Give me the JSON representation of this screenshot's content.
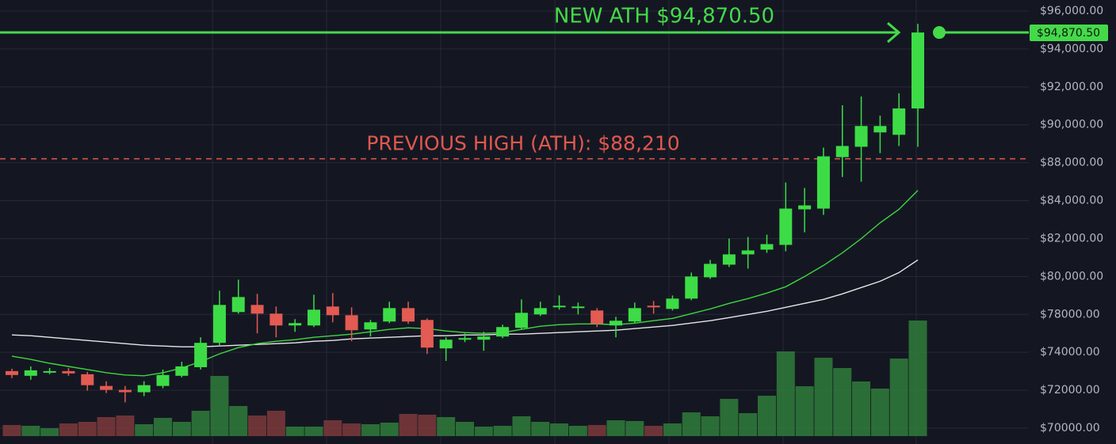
{
  "chart_data": {
    "type": "candlestick",
    "categories": [
      null,
      null,
      null,
      null,
      null,
      null,
      null,
      null,
      null,
      null,
      null,
      null,
      null,
      null,
      null,
      null,
      null,
      null,
      null,
      null,
      null,
      null,
      null,
      null,
      null,
      null,
      null,
      null,
      null,
      null,
      null,
      null,
      null,
      null,
      null,
      null,
      null,
      null,
      null,
      null,
      null,
      null,
      null,
      null,
      null,
      null,
      null,
      null,
      null
    ],
    "open": [
      73010,
      72763,
      72928,
      73010,
      72845,
      72227,
      72020,
      71897,
      72227,
      72763,
      73216,
      75000,
      78125,
      78500,
      78042,
      76834,
      76834,
      78417,
      77917,
      76417,
      77250,
      78333,
      77417,
      74418,
      75334,
      75334,
      75668,
      76584,
      78000,
      78375,
      78375,
      78208,
      76834,
      77250,
      78458,
      78292,
      78834,
      79958,
      80625,
      81167,
      81417,
      81667,
      83542,
      83583,
      88296,
      88843,
      89601,
      89475,
      90864
    ],
    "high": [
      73134,
      73258,
      73175,
      73175,
      72969,
      72474,
      72227,
      72474,
      73093,
      73505,
      75584,
      79250,
      79833,
      79083,
      78417,
      77500,
      79042,
      79125,
      78375,
      77417,
      78667,
      78667,
      77584,
      75584,
      76000,
      76167,
      76917,
      78792,
      78667,
      79000,
      78625,
      78333,
      77750,
      78625,
      78708,
      79000,
      80208,
      80875,
      82000,
      82083,
      82208,
      85917,
      85334,
      88801,
      91032,
      91495,
      90485,
      91664,
      95326
    ],
    "low": [
      72639,
      72557,
      72845,
      72763,
      71979,
      71855,
      71361,
      71691,
      72103,
      72680,
      73093,
      74667,
      78042,
      76000,
      75584,
      76167,
      76667,
      77167,
      75168,
      75668,
      77083,
      77000,
      73918,
      73546,
      75084,
      74167,
      75501,
      76417,
      77833,
      78250,
      78000,
      76667,
      75584,
      77083,
      78042,
      78208,
      78750,
      79875,
      80500,
      80417,
      81250,
      81333,
      82333,
      83250,
      86500,
      86000,
      88506,
      88885,
      88843
    ],
    "close": [
      72804,
      73051,
      73010,
      72887,
      72268,
      72020,
      71897,
      72268,
      72804,
      73258,
      75001,
      78500,
      78917,
      78042,
      76834,
      77083,
      78250,
      77917,
      76334,
      77167,
      78333,
      77250,
      74501,
      75334,
      75501,
      75668,
      76667,
      78083,
      78333,
      78458,
      78417,
      77000,
      77334,
      78333,
      78375,
      78834,
      80000,
      80667,
      81167,
      81375,
      81708,
      83583,
      83750,
      88338,
      88885,
      89938,
      89938,
      90864,
      94870.5
    ],
    "volume": [
      14,
      13,
      10,
      16,
      18,
      24,
      26,
      15,
      23,
      18,
      32,
      76,
      38,
      26,
      32,
      12,
      12,
      20,
      16,
      15,
      17,
      28,
      27,
      24,
      18,
      12,
      13,
      25,
      18,
      16,
      13,
      14,
      20,
      19,
      13,
      16,
      30,
      25,
      47,
      29,
      51,
      107,
      63,
      99,
      86,
      69,
      60,
      98,
      146
    ],
    "vlim": [
      0,
      160
    ],
    "up_color": "#3ddc46",
    "down_color": "#e35b52",
    "volume_up_color": "#2f7d3a",
    "volume_down_color": "#7c3a3c",
    "series": [
      {
        "color": "#e6e6e6",
        "values": [
          75834,
          75751,
          75584,
          75417,
          75251,
          75084,
          74918,
          74751,
          74668,
          74584,
          74584,
          74668,
          74751,
          74835,
          74918,
          75001,
          75168,
          75251,
          75417,
          75501,
          75584,
          75668,
          75751,
          75751,
          75834,
          75834,
          75918,
          75918,
          76001,
          76084,
          76167,
          76251,
          76334,
          76501,
          76667,
          76834,
          77084,
          77334,
          77667,
          78000,
          78167,
          78375,
          78583,
          78792,
          79083,
          79417,
          79750,
          80208,
          80875
        ]
      },
      {
        "color": "#3fd63f",
        "values": [
          73794,
          73629,
          73423,
          73258,
          73093,
          72928,
          72804,
          72763,
          72928,
          73175,
          73505,
          73918,
          74501,
          74918,
          75168,
          75334,
          75584,
          75751,
          75918,
          76167,
          76417,
          76584,
          76501,
          76251,
          76084,
          76000,
          76084,
          76417,
          76751,
          76917,
          77000,
          77000,
          76917,
          77083,
          77334,
          77584,
          78042,
          78292,
          78583,
          78834,
          79125,
          79458,
          80000,
          80583,
          81250,
          82000,
          82833,
          83542,
          85084
        ]
      }
    ],
    "ylim": [
      70000,
      96000
    ],
    "yticks": [
      {
        "value": 96000,
        "label": "$96,000.00"
      },
      {
        "value": 94000,
        "label": "$94,000.00"
      },
      {
        "value": 92000,
        "label": "$92,000.00"
      },
      {
        "value": 90000,
        "label": "$90,000.00"
      },
      {
        "value": 88000,
        "label": "$88,000.00"
      },
      {
        "value": 84000,
        "label": "$84,000.00"
      },
      {
        "value": 82000,
        "label": "$82,000.00"
      },
      {
        "value": 80000,
        "label": "$80,000.00"
      },
      {
        "value": 78000,
        "label": "$78000.00"
      },
      {
        "value": 74000,
        "label": "$74000.00"
      },
      {
        "value": 72000,
        "label": "$72000.00"
      },
      {
        "value": 70000,
        "label": "$70000.00"
      }
    ],
    "grid": true,
    "annotations": [
      {
        "text": "NEW ATH $94,870.50",
        "value": 94870.5,
        "price_label": "$94,870.50",
        "color": "#45d94a",
        "style": "solid"
      },
      {
        "text": "PREVIOUS HIGH (ATH): $88,210",
        "value": 88210,
        "color": "#e0584e",
        "style": "dashed"
      }
    ]
  }
}
